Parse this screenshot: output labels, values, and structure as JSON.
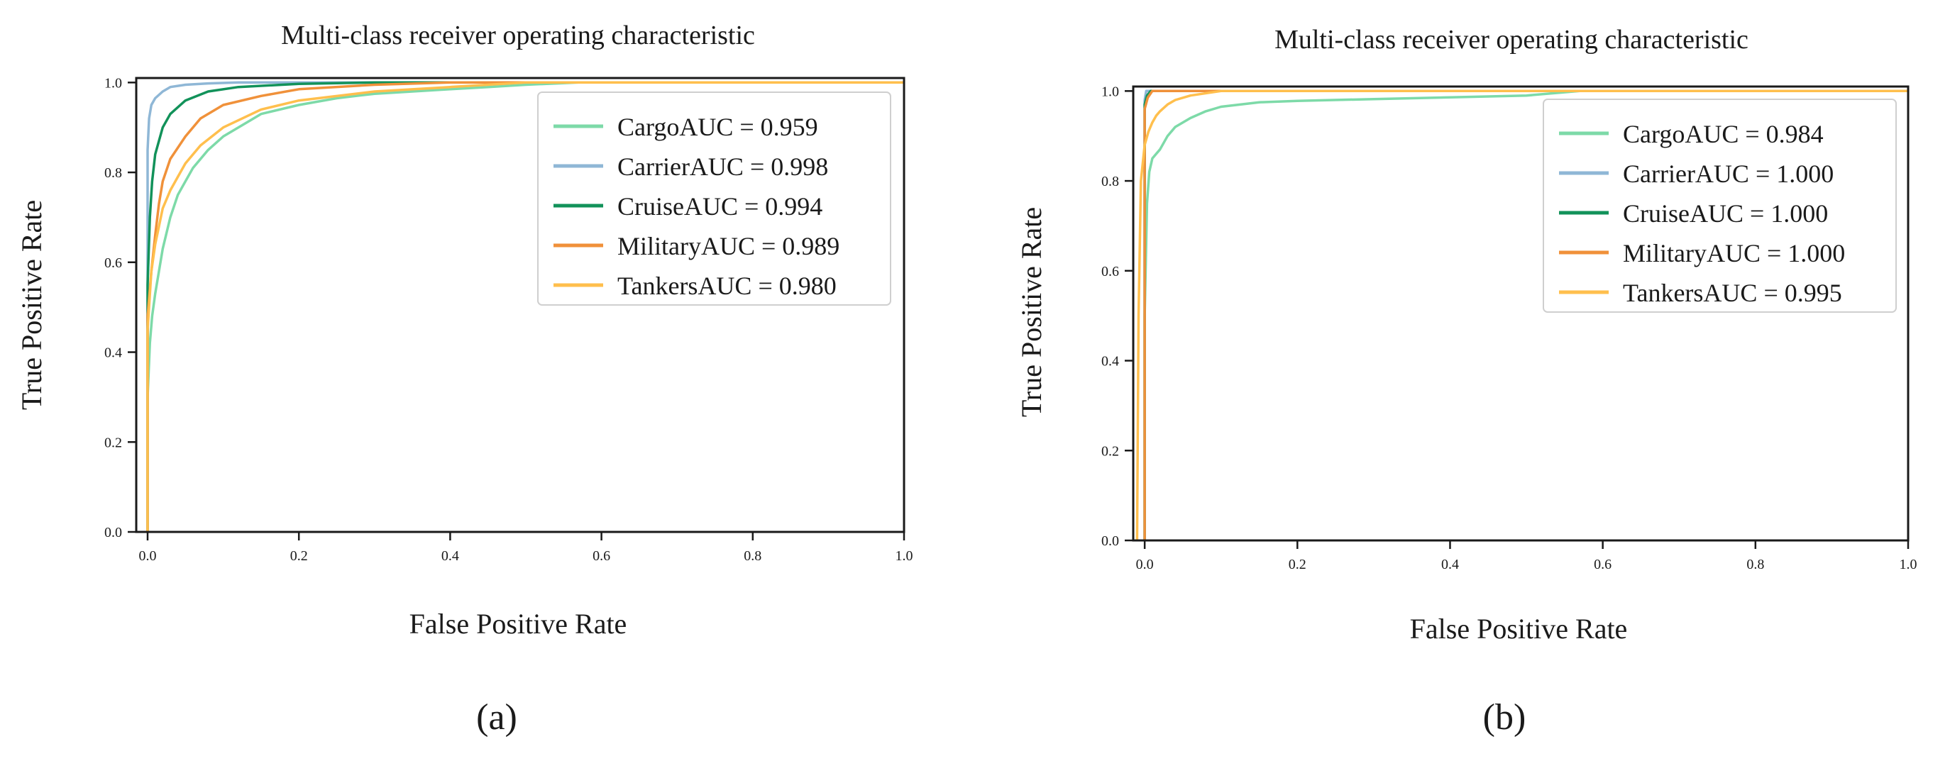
{
  "series_colors": {
    "Cargo": "#7ddaa8",
    "Carrier": "#8fb7d6",
    "Cruise": "#12925a",
    "Military": "#f0913a",
    "Tankers": "#ffbf4d"
  },
  "chart_data": [
    {
      "panel_label": "(a)",
      "type": "line",
      "title": "Multi-class receiver operating characteristic",
      "xlabel": "False Positive Rate",
      "ylabel": "True Positive Rate",
      "xlim": [
        -0.015,
        1.0
      ],
      "ylim": [
        0.0,
        1.01
      ],
      "xticks": [
        "0.0",
        "0.2",
        "0.4",
        "0.6",
        "0.8",
        "1.0"
      ],
      "yticks": [
        "0.0",
        "0.2",
        "0.4",
        "0.6",
        "0.8",
        "1.0"
      ],
      "legend_position": "top-right",
      "series": [
        {
          "name": "Cargo",
          "legend": "CargoAUC = 0.959",
          "x": [
            0.0,
            0.0,
            0.003,
            0.006,
            0.01,
            0.015,
            0.02,
            0.03,
            0.04,
            0.05,
            0.06,
            0.08,
            0.1,
            0.12,
            0.15,
            0.2,
            0.25,
            0.3,
            0.4,
            0.45,
            0.5,
            0.57,
            1.0
          ],
          "y": [
            0.0,
            0.3,
            0.42,
            0.48,
            0.53,
            0.58,
            0.63,
            0.7,
            0.75,
            0.78,
            0.81,
            0.85,
            0.88,
            0.9,
            0.93,
            0.95,
            0.965,
            0.975,
            0.985,
            0.99,
            0.995,
            1.0,
            1.0
          ]
        },
        {
          "name": "Carrier",
          "legend": "CarrierAUC = 0.998",
          "x": [
            0.0,
            0.0,
            0.002,
            0.005,
            0.01,
            0.02,
            0.03,
            0.05,
            0.08,
            0.12,
            1.0
          ],
          "y": [
            0.0,
            0.85,
            0.92,
            0.95,
            0.965,
            0.98,
            0.99,
            0.995,
            0.998,
            1.0,
            1.0
          ]
        },
        {
          "name": "Cruise",
          "legend": "CruiseAUC = 0.994",
          "x": [
            0.0,
            0.0,
            0.003,
            0.006,
            0.01,
            0.015,
            0.02,
            0.03,
            0.05,
            0.08,
            0.12,
            0.2,
            0.3,
            1.0
          ],
          "y": [
            0.0,
            0.55,
            0.7,
            0.78,
            0.84,
            0.87,
            0.9,
            0.93,
            0.96,
            0.98,
            0.99,
            0.997,
            1.0,
            1.0
          ]
        },
        {
          "name": "Military",
          "legend": "MilitaryAUC = 0.989",
          "x": [
            0.0,
            0.0,
            0.005,
            0.01,
            0.015,
            0.02,
            0.03,
            0.05,
            0.07,
            0.1,
            0.15,
            0.2,
            0.3,
            0.4,
            1.0
          ],
          "y": [
            0.0,
            0.48,
            0.58,
            0.66,
            0.73,
            0.78,
            0.83,
            0.88,
            0.92,
            0.95,
            0.97,
            0.985,
            0.995,
            1.0,
            1.0
          ]
        },
        {
          "name": "Tankers",
          "legend": "TankersAUC = 0.980",
          "x": [
            0.0,
            0.0,
            0.005,
            0.01,
            0.015,
            0.02,
            0.03,
            0.04,
            0.05,
            0.07,
            0.1,
            0.15,
            0.2,
            0.3,
            0.4,
            0.5,
            1.0
          ],
          "y": [
            0.0,
            0.45,
            0.58,
            0.64,
            0.68,
            0.72,
            0.76,
            0.79,
            0.82,
            0.86,
            0.9,
            0.94,
            0.96,
            0.98,
            0.99,
            1.0,
            1.0
          ]
        }
      ]
    },
    {
      "panel_label": "(b)",
      "type": "line",
      "title": "Multi-class receiver operating characteristic",
      "xlabel": "False Positive Rate",
      "ylabel": "True Positive Rate",
      "xlim": [
        -0.015,
        1.0
      ],
      "ylim": [
        0.0,
        1.01
      ],
      "xticks": [
        "0.0",
        "0.2",
        "0.4",
        "0.6",
        "0.8",
        "1.0"
      ],
      "yticks": [
        "0.0",
        "0.2",
        "0.4",
        "0.6",
        "0.8",
        "1.0"
      ],
      "legend_position": "top-right",
      "series": [
        {
          "name": "Cargo",
          "legend": "CargoAUC = 0.984",
          "x": [
            0.0,
            0.0,
            0.003,
            0.006,
            0.01,
            0.015,
            0.02,
            0.03,
            0.04,
            0.06,
            0.08,
            0.1,
            0.15,
            0.2,
            0.3,
            0.4,
            0.5,
            0.57,
            1.0
          ],
          "y": [
            0.0,
            0.5,
            0.75,
            0.82,
            0.85,
            0.86,
            0.87,
            0.9,
            0.92,
            0.94,
            0.955,
            0.965,
            0.975,
            0.978,
            0.982,
            0.986,
            0.99,
            1.0,
            1.0
          ]
        },
        {
          "name": "Carrier",
          "legend": "CarrierAUC = 1.000",
          "x": [
            0.0,
            0.0,
            0.002,
            1.0
          ],
          "y": [
            0.0,
            0.98,
            1.0,
            1.0
          ]
        },
        {
          "name": "Cruise",
          "legend": "CruiseAUC = 1.000",
          "x": [
            0.0,
            0.0,
            0.003,
            0.008,
            1.0
          ],
          "y": [
            0.0,
            0.97,
            0.99,
            1.0,
            1.0
          ]
        },
        {
          "name": "Military",
          "legend": "MilitaryAUC = 1.000",
          "x": [
            0.0,
            0.0,
            0.004,
            0.01,
            1.0
          ],
          "y": [
            0.0,
            0.96,
            0.985,
            1.0,
            1.0
          ]
        },
        {
          "name": "Tankers",
          "legend": "TankersAUC = 0.995",
          "x": [
            -0.01,
            -0.008,
            -0.005,
            0.0,
            0.005,
            0.01,
            0.015,
            0.02,
            0.03,
            0.04,
            0.06,
            0.1,
            1.0
          ],
          "y": [
            0.0,
            0.5,
            0.8,
            0.88,
            0.91,
            0.93,
            0.945,
            0.955,
            0.97,
            0.98,
            0.99,
            1.0,
            1.0
          ]
        }
      ]
    }
  ]
}
